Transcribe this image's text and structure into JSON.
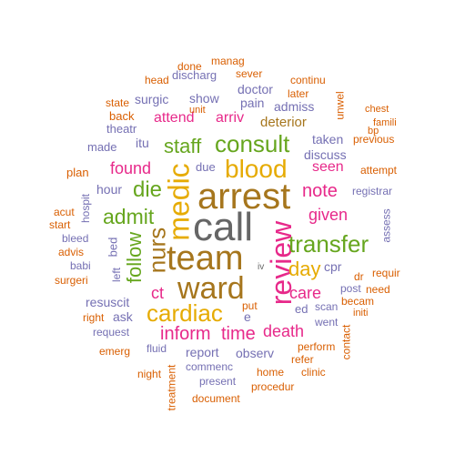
{
  "colors": {
    "orange": "#d95f02",
    "purple": "#7570b3",
    "magenta": "#e7298a",
    "green": "#66a61e",
    "gold": "#e6ab02",
    "brown": "#a6761d",
    "gray": "#666666"
  },
  "words": [
    {
      "text": "call",
      "color": "gray"
    },
    {
      "text": "arrest",
      "color": "brown"
    },
    {
      "text": "team",
      "color": "brown"
    },
    {
      "text": "ward",
      "color": "brown"
    },
    {
      "text": "medic",
      "color": "gold"
    },
    {
      "text": "review",
      "color": "magenta"
    },
    {
      "text": "blood",
      "color": "gold"
    },
    {
      "text": "consult",
      "color": "green"
    },
    {
      "text": "transfer",
      "color": "green"
    },
    {
      "text": "cardiac",
      "color": "gold"
    },
    {
      "text": "nurs",
      "color": "brown"
    },
    {
      "text": "admit",
      "color": "green"
    },
    {
      "text": "die",
      "color": "green"
    },
    {
      "text": "staff",
      "color": "green"
    },
    {
      "text": "follow",
      "color": "green"
    },
    {
      "text": "inform",
      "color": "magenta"
    },
    {
      "text": "time",
      "color": "magenta"
    },
    {
      "text": "day",
      "color": "gold"
    },
    {
      "text": "note",
      "color": "magenta"
    },
    {
      "text": "given",
      "color": "magenta"
    },
    {
      "text": "death",
      "color": "magenta"
    },
    {
      "text": "care",
      "color": "magenta"
    },
    {
      "text": "found",
      "color": "magenta"
    },
    {
      "text": "ct",
      "color": "magenta"
    },
    {
      "text": "attend",
      "color": "magenta"
    },
    {
      "text": "arriv",
      "color": "magenta"
    },
    {
      "text": "seen",
      "color": "magenta"
    },
    {
      "text": "deterior",
      "color": "brown"
    },
    {
      "text": "itu",
      "color": "purple"
    },
    {
      "text": "due",
      "color": "purple"
    },
    {
      "text": "hour",
      "color": "purple"
    },
    {
      "text": "made",
      "color": "purple"
    },
    {
      "text": "surgic",
      "color": "purple"
    },
    {
      "text": "show",
      "color": "purple"
    },
    {
      "text": "doctor",
      "color": "purple"
    },
    {
      "text": "pain",
      "color": "purple"
    },
    {
      "text": "admiss",
      "color": "purple"
    },
    {
      "text": "taken",
      "color": "purple"
    },
    {
      "text": "discuss",
      "color": "purple"
    },
    {
      "text": "theatr",
      "color": "purple"
    },
    {
      "text": "report",
      "color": "purple"
    },
    {
      "text": "observ",
      "color": "purple"
    },
    {
      "text": "resuscit",
      "color": "purple"
    },
    {
      "text": "ask",
      "color": "purple"
    },
    {
      "text": "ed",
      "color": "purple"
    },
    {
      "text": "cpr",
      "color": "purple"
    },
    {
      "text": "e",
      "color": "purple"
    },
    {
      "text": "bed",
      "color": "purple"
    },
    {
      "text": "left",
      "color": "purple"
    },
    {
      "text": "scan",
      "color": "purple"
    },
    {
      "text": "registrar",
      "color": "purple"
    },
    {
      "text": "hospit",
      "color": "purple"
    },
    {
      "text": "babi",
      "color": "purple"
    },
    {
      "text": "bleed",
      "color": "purple"
    },
    {
      "text": "request",
      "color": "purple"
    },
    {
      "text": "fluid",
      "color": "purple"
    },
    {
      "text": "commenc",
      "color": "purple"
    },
    {
      "text": "present",
      "color": "purple"
    },
    {
      "text": "went",
      "color": "purple"
    },
    {
      "text": "post",
      "color": "purple"
    },
    {
      "text": "discharg",
      "color": "purple"
    },
    {
      "text": "assess",
      "color": "purple"
    },
    {
      "text": "iv",
      "color": "gray"
    },
    {
      "text": "manag",
      "color": "orange"
    },
    {
      "text": "done",
      "color": "orange"
    },
    {
      "text": "sever",
      "color": "orange"
    },
    {
      "text": "head",
      "color": "orange"
    },
    {
      "text": "continu",
      "color": "orange"
    },
    {
      "text": "later",
      "color": "orange"
    },
    {
      "text": "state",
      "color": "orange"
    },
    {
      "text": "unit",
      "color": "orange"
    },
    {
      "text": "back",
      "color": "orange"
    },
    {
      "text": "unwel",
      "color": "orange"
    },
    {
      "text": "famili",
      "color": "orange"
    },
    {
      "text": "chest",
      "color": "orange"
    },
    {
      "text": "bp",
      "color": "orange"
    },
    {
      "text": "previous",
      "color": "orange"
    },
    {
      "text": "attempt",
      "color": "orange"
    },
    {
      "text": "plan",
      "color": "orange"
    },
    {
      "text": "acut",
      "color": "orange"
    },
    {
      "text": "start",
      "color": "orange"
    },
    {
      "text": "advis",
      "color": "orange"
    },
    {
      "text": "surgeri",
      "color": "orange"
    },
    {
      "text": "right",
      "color": "orange"
    },
    {
      "text": "emerg",
      "color": "orange"
    },
    {
      "text": "night",
      "color": "orange"
    },
    {
      "text": "treatment",
      "color": "orange"
    },
    {
      "text": "document",
      "color": "orange"
    },
    {
      "text": "procedur",
      "color": "orange"
    },
    {
      "text": "home",
      "color": "orange"
    },
    {
      "text": "clinic",
      "color": "orange"
    },
    {
      "text": "refer",
      "color": "orange"
    },
    {
      "text": "perform",
      "color": "orange"
    },
    {
      "text": "contact",
      "color": "orange"
    },
    {
      "text": "initi",
      "color": "orange"
    },
    {
      "text": "becam",
      "color": "orange"
    },
    {
      "text": "need",
      "color": "orange"
    },
    {
      "text": "requir",
      "color": "orange"
    },
    {
      "text": "dr",
      "color": "orange"
    },
    {
      "text": "put",
      "color": "orange"
    }
  ]
}
